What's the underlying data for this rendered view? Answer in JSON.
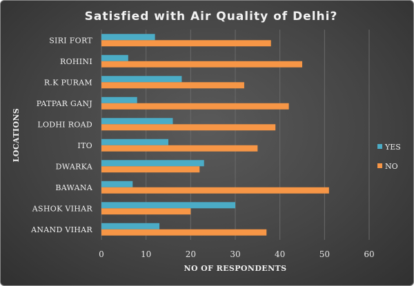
{
  "chart_data": {
    "type": "bar",
    "orientation": "horizontal",
    "title": "Satisfied with Air Quality of Delhi?",
    "xlabel": "NO OF RESPONDENTS",
    "ylabel": "LOCATIONS",
    "xlim": [
      0,
      60
    ],
    "xticks": [
      "0",
      "10",
      "20",
      "30",
      "40",
      "50",
      "60"
    ],
    "grid": true,
    "legend_position": "right",
    "categories": [
      "SIRI FORT",
      "ROHINI",
      "R.K PURAM",
      "PATPAR GANJ",
      "LODHI ROAD",
      "ITO",
      "DWARKA",
      "BAWANA",
      "ASHOK VIHAR",
      "ANAND VIHAR"
    ],
    "series": [
      {
        "name": "YES",
        "color": "#4bacc6",
        "values": [
          12,
          6,
          18,
          8,
          16,
          15,
          23,
          7,
          30,
          13
        ]
      },
      {
        "name": "NO",
        "color": "#f79646",
        "values": [
          38,
          45,
          32,
          42,
          39,
          35,
          22,
          51,
          20,
          37
        ]
      }
    ]
  }
}
